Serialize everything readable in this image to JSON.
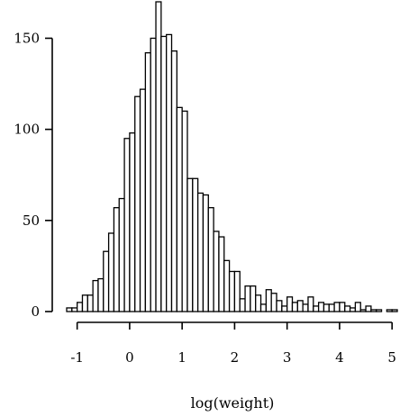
{
  "chart_data": {
    "type": "bar",
    "title": "",
    "xlabel": "log(weight)",
    "ylabel": "",
    "bin_width": 0.1,
    "bin_starts": [
      -1.2,
      -1.1,
      -1.0,
      -0.9,
      -0.8,
      -0.7,
      -0.6,
      -0.5,
      -0.4,
      -0.3,
      -0.2,
      -0.1,
      0.0,
      0.1,
      0.2,
      0.3,
      0.4,
      0.5,
      0.6,
      0.7,
      0.8,
      0.9,
      1.0,
      1.1,
      1.2,
      1.3,
      1.4,
      1.5,
      1.6,
      1.7,
      1.8,
      1.9,
      2.0,
      2.1,
      2.2,
      2.3,
      2.4,
      2.5,
      2.6,
      2.7,
      2.8,
      2.9,
      3.0,
      3.1,
      3.2,
      3.3,
      3.4,
      3.5,
      3.6,
      3.7,
      3.8,
      3.9,
      4.0,
      4.1,
      4.2,
      4.3,
      4.4,
      4.5,
      4.6,
      4.7,
      4.8,
      4.9,
      5.0
    ],
    "values": [
      2,
      2,
      5,
      9,
      9,
      17,
      18,
      33,
      43,
      57,
      62,
      95,
      98,
      118,
      122,
      142,
      150,
      170,
      151,
      152,
      143,
      112,
      110,
      73,
      73,
      65,
      64,
      57,
      44,
      41,
      28,
      22,
      22,
      7,
      14,
      14,
      9,
      4,
      12,
      10,
      6,
      3,
      8,
      5,
      6,
      4,
      8,
      3,
      5,
      4,
      4,
      5,
      5,
      3,
      2,
      5,
      1,
      3,
      1,
      1,
      0,
      1,
      1
    ],
    "x_ticks": [
      -1,
      0,
      1,
      2,
      3,
      4,
      5
    ],
    "x_tick_labels": [
      "-1",
      "0",
      "1",
      "2",
      "3",
      "4",
      "5"
    ],
    "y_ticks": [
      0,
      50,
      100,
      150
    ],
    "y_tick_labels": [
      "0",
      "50",
      "100",
      "150"
    ],
    "xlim": [
      -1.2,
      5.1
    ],
    "ylim": [
      0,
      170
    ],
    "grid": false,
    "bar_fill": "#ffffff",
    "bar_stroke": "#000000"
  }
}
